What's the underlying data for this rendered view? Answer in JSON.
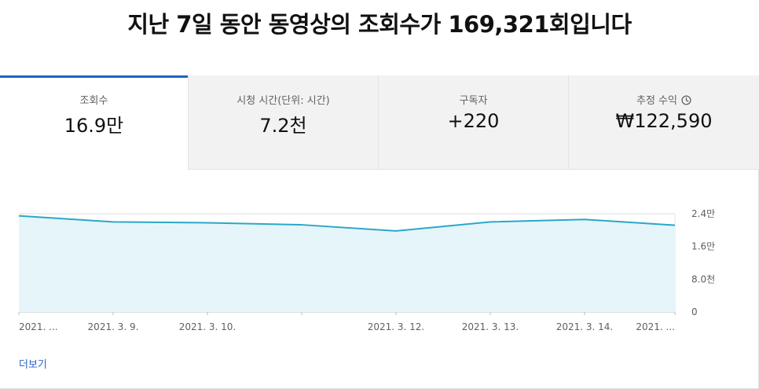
{
  "headline": "지난 7일 동안 동영상의 조회수가 169,321회입니다",
  "tabs": [
    {
      "label": "조회수",
      "value": "16.9만",
      "active": true
    },
    {
      "label": "시청 시간(단위: 시간)",
      "value": "7.2천"
    },
    {
      "label": "구독자",
      "value": "+220"
    },
    {
      "label": "추정 수익",
      "value": "₩122,590",
      "icon": "clock-icon"
    }
  ],
  "more_link": "더보기",
  "colors": {
    "accent": "#1f63c3",
    "line": "#2ba7c9",
    "fill": "#e6f5fa",
    "link": "#2b63c1"
  },
  "chart_data": {
    "type": "area",
    "x_labels": [
      "2021. ...",
      "2021. 3. 9.",
      "2021. 3. 10.",
      "",
      "2021. 3. 12.",
      "2021. 3. 13.",
      "2021. 3. 14.",
      "2021. ..."
    ],
    "values": [
      23500,
      22000,
      21800,
      21300,
      19800,
      22000,
      22600,
      21200
    ],
    "ylim": [
      0,
      24000
    ],
    "y_ticks": [
      {
        "value": 24000,
        "label": "2.4만"
      },
      {
        "value": 16000,
        "label": "1.6만"
      },
      {
        "value": 8000,
        "label": "8.0천"
      },
      {
        "value": 0,
        "label": "0"
      }
    ],
    "grid": true
  }
}
